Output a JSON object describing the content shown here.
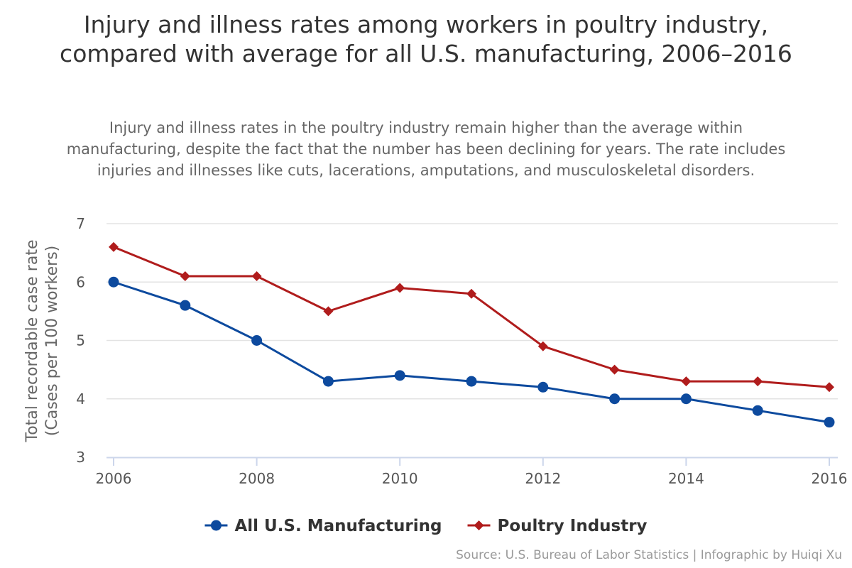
{
  "chart_data": {
    "type": "line",
    "title": "Injury and illness rates among workers in poultry industry, compared with average for all U.S. manufacturing, 2006–2016",
    "subtitle": "Injury and illness rates in the poultry industry remain higher than the average within manufacturing, despite the fact that the number has been declining for years. The rate includes injuries and illnesses like cuts, lacerations, amputations, and musculoskeletal disorders.",
    "ylabel_line1": "Total recordable case rate",
    "ylabel_line2": "(Cases per 100 workers)",
    "xlabel": "",
    "x": [
      2006,
      2007,
      2008,
      2009,
      2010,
      2011,
      2012,
      2013,
      2014,
      2015,
      2016
    ],
    "xticks": [
      "2006",
      "2008",
      "2010",
      "2012",
      "2014",
      "2016"
    ],
    "xtick_values": [
      2006,
      2008,
      2010,
      2012,
      2014,
      2016
    ],
    "yticks": [
      "3",
      "4",
      "5",
      "6",
      "7"
    ],
    "ytick_values": [
      3,
      4,
      5,
      6,
      7
    ],
    "xlim": [
      2006,
      2016
    ],
    "ylim": [
      3,
      7
    ],
    "grid": true,
    "legend_position": "bottom-center",
    "series": [
      {
        "name": "All U.S. Manufacturing",
        "color": "#0d4a9e",
        "marker": "circle",
        "values": [
          6.0,
          5.6,
          5.0,
          4.3,
          4.4,
          4.3,
          4.2,
          4.0,
          4.0,
          3.8,
          3.6
        ]
      },
      {
        "name": "Poultry Industry",
        "color": "#b01c1c",
        "marker": "diamond",
        "values": [
          6.6,
          6.1,
          6.1,
          5.5,
          5.9,
          5.8,
          4.9,
          4.5,
          4.3,
          4.3,
          4.2
        ]
      }
    ],
    "credit": "Source: U.S. Bureau of Labor Statistics | Infographic by Huiqi Xu"
  }
}
